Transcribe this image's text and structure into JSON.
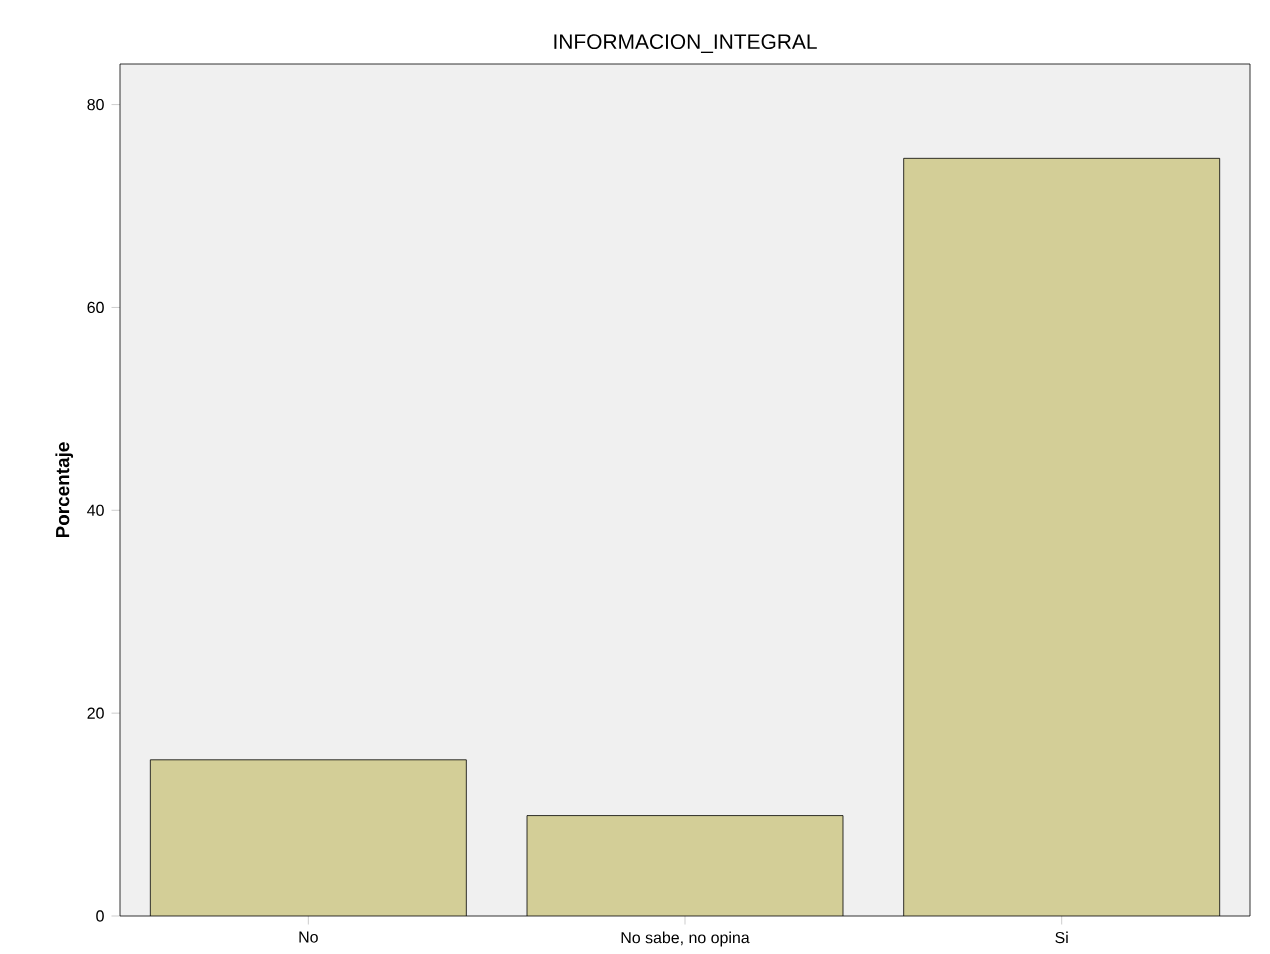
{
  "chart_data": {
    "type": "bar",
    "title": "INFORMACION_INTEGRAL",
    "ylabel": "Porcentaje",
    "categories": [
      "No",
      "No sabe, no opina",
      "Si"
    ],
    "values": [
      15.4,
      9.9,
      74.7
    ],
    "color": "#d3ce97",
    "ylim": [
      0,
      84
    ],
    "yticks": [
      0,
      20,
      40,
      60,
      80
    ],
    "grid": false
  }
}
